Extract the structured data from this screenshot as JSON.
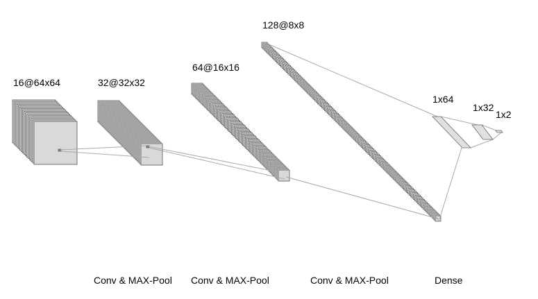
{
  "layers": [
    {
      "id": "input",
      "label": "16@64x64",
      "maps": 16
    },
    {
      "id": "conv1",
      "label": "32@32x32",
      "maps": 32
    },
    {
      "id": "conv2",
      "label": "64@16x16",
      "maps": 64
    },
    {
      "id": "conv3",
      "label": "128@8x8",
      "maps": 128
    },
    {
      "id": "dense1",
      "label": "1x64"
    },
    {
      "id": "dense2",
      "label": "1x32"
    },
    {
      "id": "dense3",
      "label": "1x2"
    }
  ],
  "operations": [
    {
      "label": "Conv & MAX-Pool"
    },
    {
      "label": "Conv & MAX-Pool"
    },
    {
      "label": "Conv & MAX-Pool"
    },
    {
      "label": "Dense"
    }
  ]
}
